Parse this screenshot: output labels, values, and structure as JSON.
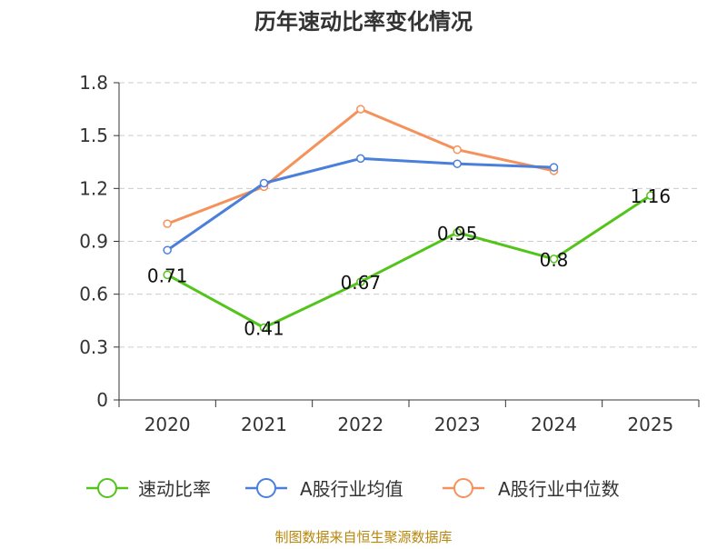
{
  "chart_data": {
    "type": "line",
    "title": "历年速动比率变化情况",
    "categories": [
      "2020",
      "2021",
      "2022",
      "2023",
      "2024",
      "2025"
    ],
    "ylim": [
      0,
      1.8
    ],
    "yticks": [
      "0",
      "0.3",
      "0.6",
      "0.9",
      "1.2",
      "1.5",
      "1.8"
    ],
    "grid": true,
    "legend_position": "bottom",
    "series": [
      {
        "name": "速动比率",
        "color": "#52c41a",
        "values": [
          0.71,
          0.41,
          0.67,
          0.95,
          0.8,
          1.16
        ],
        "labels": [
          "0.71",
          "0.41",
          "0.67",
          "0.95",
          "0.8",
          "1.16"
        ]
      },
      {
        "name": "A股行业均值",
        "color": "#4a7fdc",
        "values": [
          0.85,
          1.23,
          1.37,
          1.34,
          1.32,
          null
        ]
      },
      {
        "name": "A股行业中位数",
        "color": "#f5925b",
        "values": [
          1.0,
          1.21,
          1.65,
          1.42,
          1.3,
          null
        ]
      }
    ],
    "source": "制图数据来自恒生聚源数据库"
  }
}
